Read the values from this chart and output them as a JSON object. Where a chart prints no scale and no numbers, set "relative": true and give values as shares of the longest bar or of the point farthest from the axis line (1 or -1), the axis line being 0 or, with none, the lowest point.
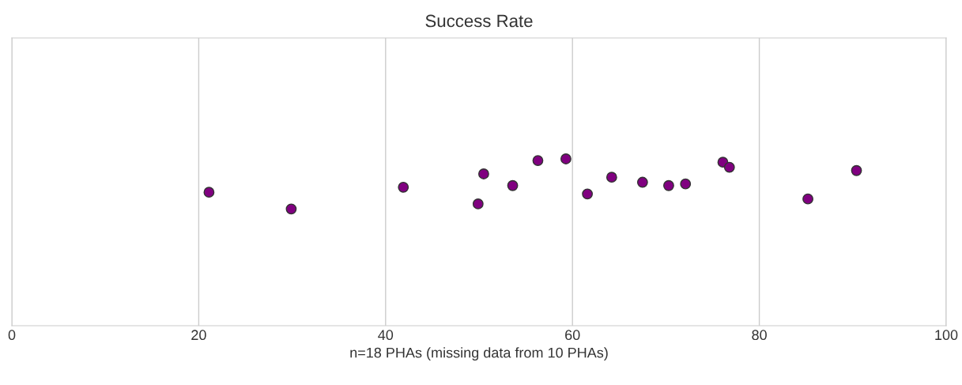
{
  "chart_data": {
    "type": "scatter",
    "title": "Success Rate",
    "xlabel": "n=18 PHAs (missing data from 10 PHAs)",
    "x": [
      21.1,
      29.9,
      41.9,
      49.9,
      50.5,
      53.6,
      56.3,
      59.3,
      61.6,
      64.2,
      67.5,
      70.3,
      72.1,
      76.1,
      76.8,
      85.2,
      90.4
    ],
    "series": [
      {
        "color": "#800080",
        "values": [
          0.8,
          0.7,
          0.83,
          0.73,
          0.91,
          0.84,
          0.99,
          1,
          0.79,
          0.89,
          0.86,
          0.84,
          0.85,
          0.98,
          0.95,
          0.76,
          0.93
        ]
      }
    ],
    "relative": true,
    "xlim": [
      0,
      100
    ],
    "xticks": [
      0,
      20,
      40,
      60,
      80,
      100
    ],
    "grid": "x",
    "marker": "circle",
    "tick_labels": "x"
  }
}
